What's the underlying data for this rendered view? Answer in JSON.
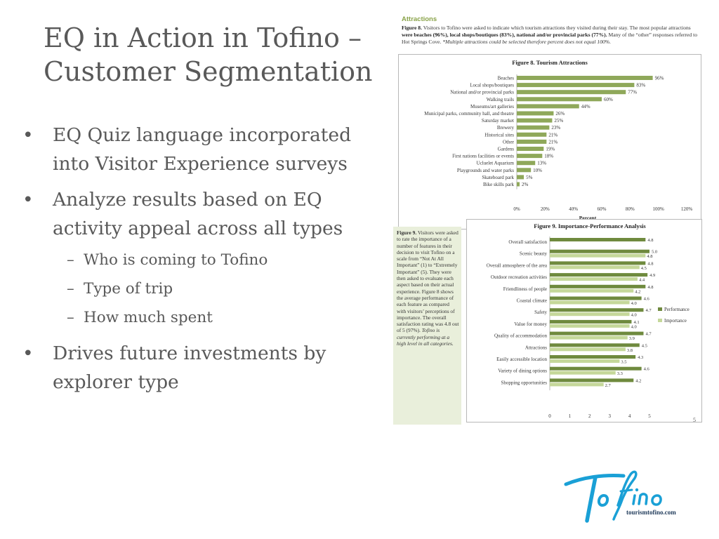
{
  "slide": {
    "title": "EQ in Action in Tofino – Customer Segmentation",
    "bullets": [
      {
        "text": "EQ Quiz language incorporated into Visitor Experience surveys",
        "sub": []
      },
      {
        "text": "Analyze results based on EQ activity appeal across all types",
        "sub": [
          "Who is coming to Tofino",
          "Type of trip",
          "How much spent"
        ]
      },
      {
        "text": "Drives future investments by explorer type",
        "sub": []
      }
    ],
    "bullet_glyph": "•",
    "sub_glyph": "–"
  },
  "report": {
    "section_heading": "Attractions",
    "fig8_caption_label": "Figure 8.",
    "fig8_caption_a": " Visitors to Tofino were asked to indicate which tourism attractions they visited during their stay.  The most popular attractions ",
    "fig8_caption_bold": "were beaches (96%), local shops/boutiques (83%), national and/or provincial parks (77%).",
    "fig8_caption_b": " Many of the “other” responses referred to Hot Springs Cove.  ",
    "fig8_caption_italic": "*Multiple attractions could be selected therefore percent does not equal 100%.",
    "fig9_caption_label": "Figure 9.",
    "fig9_caption_text": " Visitors were asked to rate the importance of a number of features in their decision to visit Tofino on a scale from “Not At All Important” (1) to “Extremely Important” (5). They were then asked to evaluate each aspect based on their actual experience. Figure 8 shows the average performance of each feature as compared with visitors’ perceptions of importance. The overall satisfaction rating was 4.8 out of 5 (97%). ",
    "fig9_caption_italic": "Tofino is currently performing at a high level in all categories.",
    "page_number": "5"
  },
  "logo": {
    "wordmark": "Tofino",
    "url_text": "tourismtofino.com"
  },
  "chart_data": [
    {
      "type": "bar",
      "orientation": "horizontal",
      "title": "Figure 8. Tourism Attractions",
      "xlabel": "Percent",
      "ylabel": "",
      "xlim": [
        0,
        120
      ],
      "xticks": [
        "0%",
        "20%",
        "40%",
        "60%",
        "80%",
        "100%",
        "120%"
      ],
      "grid": false,
      "color": "#8fa85a",
      "categories": [
        "Beaches",
        "Local shops/boutiques",
        "National and/or provincial parks",
        "Walking trails",
        "Museums/art galleries",
        "Municipal parks, community hall, and theatre",
        "Saturday market",
        "Brewery",
        "Historical sites",
        "Other",
        "Gardens",
        "First nations facilities or events",
        "Ucluelet Aquarium",
        "Playgrounds and water parks",
        "Skateboard park",
        "Bike skills park"
      ],
      "values": [
        96,
        83,
        77,
        60,
        44,
        26,
        25,
        23,
        21,
        21,
        19,
        18,
        13,
        10,
        5,
        2
      ],
      "value_labels": [
        "96%",
        "83%",
        "77%",
        "60%",
        "44%",
        "26%",
        "25%",
        "23%",
        "21%",
        "21%",
        "19%",
        "18%",
        "13%",
        "10%",
        "5%",
        "2%"
      ]
    },
    {
      "type": "bar",
      "orientation": "horizontal",
      "title": "Figure 9. Importance-Performance Analysis",
      "xlabel": "",
      "ylabel": "",
      "xlim": [
        0,
        5
      ],
      "xticks": [
        "0",
        "1",
        "2",
        "3",
        "4",
        "5"
      ],
      "grid": false,
      "legend_position": "right",
      "categories": [
        "Overall satisfaction",
        "Scenic beauty",
        "Overall atmosphere of the area",
        "Outdoor recreation activities",
        "Friendliness of people",
        "Coastal climate",
        "Safety",
        "Value for money",
        "Quality of accommodation",
        "Attractions",
        "Easily accessible location",
        "Variety of dining options",
        "Shopping opportunities"
      ],
      "series": [
        {
          "name": "Performance",
          "color": "#6f8a3e",
          "values": [
            4.8,
            5.0,
            4.8,
            4.9,
            4.8,
            4.6,
            4.7,
            4.1,
            4.7,
            4.5,
            4.3,
            4.6,
            4.2
          ],
          "value_labels": [
            "4.8",
            "5.0",
            "4.8",
            "4.9",
            "4.8",
            "4.6",
            "4.7",
            "4.1",
            "4.7",
            "4.5",
            "4.3",
            "4.6",
            "4.2"
          ]
        },
        {
          "name": "Importance",
          "color": "#c5d89a",
          "values": [
            null,
            4.8,
            4.5,
            4.4,
            4.2,
            4.0,
            4.0,
            4.0,
            3.9,
            3.8,
            3.5,
            3.3,
            2.7
          ],
          "value_labels": [
            "",
            "4.8",
            "4.5",
            "4.4",
            "4.2",
            "4.0",
            "4.0",
            "4.0",
            "3.9",
            "3.8",
            "3.5",
            "3.3",
            "2.7"
          ]
        }
      ]
    }
  ]
}
